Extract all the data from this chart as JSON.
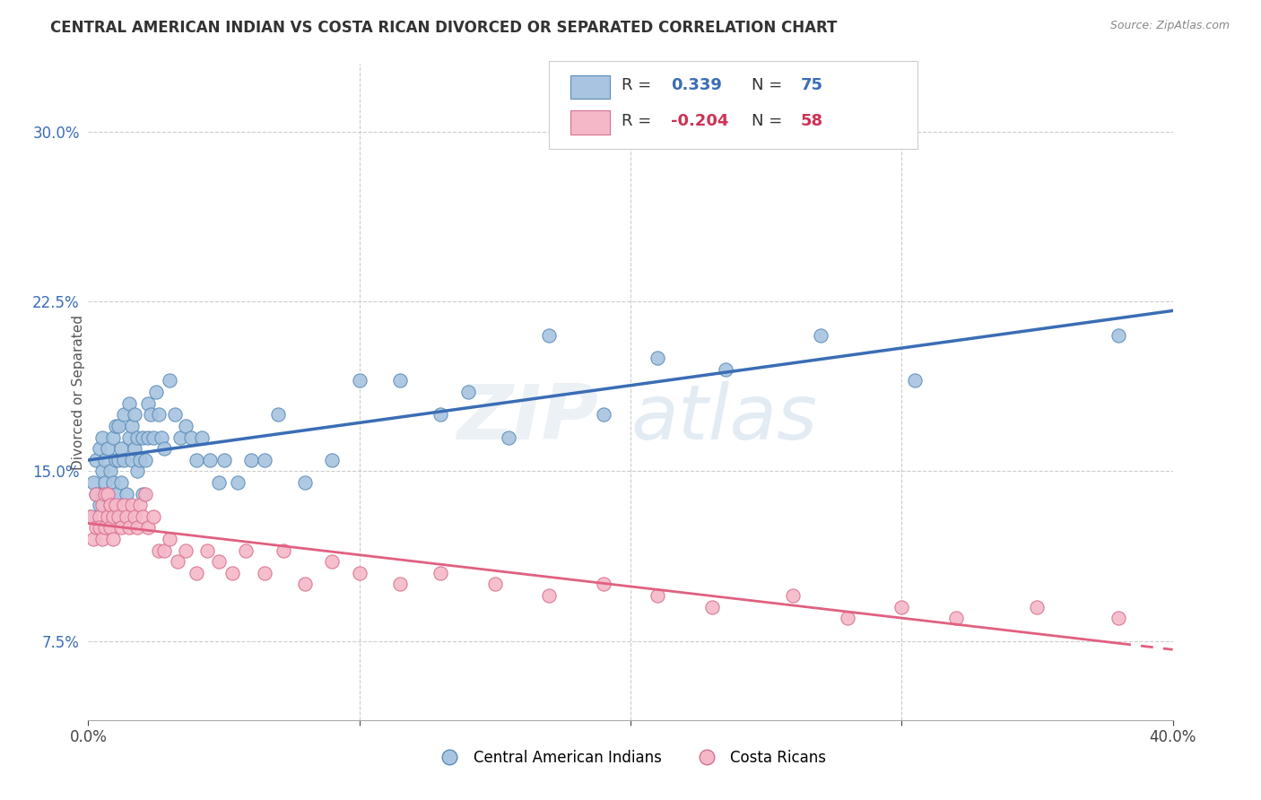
{
  "title": "CENTRAL AMERICAN INDIAN VS COSTA RICAN DIVORCED OR SEPARATED CORRELATION CHART",
  "source": "Source: ZipAtlas.com",
  "ylabel": "Divorced or Separated",
  "ytick_vals": [
    0.075,
    0.15,
    0.225,
    0.3
  ],
  "ytick_labels": [
    "7.5%",
    "15.0%",
    "22.5%",
    "30.0%"
  ],
  "xtick_vals": [
    0.0,
    0.1,
    0.2,
    0.3,
    0.4
  ],
  "xlim": [
    0.0,
    0.4
  ],
  "ylim": [
    0.04,
    0.33
  ],
  "legend_r_blue": "0.339",
  "legend_n_blue": "75",
  "legend_r_pink": "-0.204",
  "legend_n_pink": "58",
  "blue_color": "#A8C4E0",
  "blue_edge_color": "#5B8DB8",
  "pink_color": "#F5B8C8",
  "pink_edge_color": "#D87090",
  "blue_line_color": "#3A6DB5",
  "pink_line_color": "#E06080",
  "blue_scatter_x": [
    0.001,
    0.002,
    0.003,
    0.003,
    0.004,
    0.004,
    0.005,
    0.005,
    0.005,
    0.006,
    0.006,
    0.007,
    0.007,
    0.008,
    0.008,
    0.009,
    0.009,
    0.01,
    0.01,
    0.01,
    0.011,
    0.011,
    0.012,
    0.012,
    0.013,
    0.013,
    0.014,
    0.015,
    0.015,
    0.016,
    0.016,
    0.017,
    0.017,
    0.018,
    0.018,
    0.019,
    0.02,
    0.02,
    0.021,
    0.022,
    0.022,
    0.023,
    0.024,
    0.025,
    0.026,
    0.027,
    0.028,
    0.03,
    0.032,
    0.034,
    0.036,
    0.038,
    0.04,
    0.042,
    0.045,
    0.048,
    0.05,
    0.055,
    0.06,
    0.065,
    0.07,
    0.08,
    0.09,
    0.1,
    0.115,
    0.13,
    0.14,
    0.155,
    0.17,
    0.19,
    0.21,
    0.235,
    0.27,
    0.305,
    0.38
  ],
  "blue_scatter_y": [
    0.13,
    0.145,
    0.14,
    0.155,
    0.135,
    0.16,
    0.14,
    0.15,
    0.165,
    0.145,
    0.155,
    0.14,
    0.16,
    0.135,
    0.15,
    0.145,
    0.165,
    0.14,
    0.155,
    0.17,
    0.155,
    0.17,
    0.145,
    0.16,
    0.155,
    0.175,
    0.14,
    0.165,
    0.18,
    0.155,
    0.17,
    0.16,
    0.175,
    0.15,
    0.165,
    0.155,
    0.14,
    0.165,
    0.155,
    0.165,
    0.18,
    0.175,
    0.165,
    0.185,
    0.175,
    0.165,
    0.16,
    0.19,
    0.175,
    0.165,
    0.17,
    0.165,
    0.155,
    0.165,
    0.155,
    0.145,
    0.155,
    0.145,
    0.155,
    0.155,
    0.175,
    0.145,
    0.155,
    0.19,
    0.19,
    0.175,
    0.185,
    0.165,
    0.21,
    0.175,
    0.2,
    0.195,
    0.21,
    0.19,
    0.21
  ],
  "pink_scatter_x": [
    0.001,
    0.002,
    0.003,
    0.003,
    0.004,
    0.004,
    0.005,
    0.005,
    0.006,
    0.006,
    0.007,
    0.007,
    0.008,
    0.008,
    0.009,
    0.009,
    0.01,
    0.011,
    0.012,
    0.013,
    0.014,
    0.015,
    0.016,
    0.017,
    0.018,
    0.019,
    0.02,
    0.021,
    0.022,
    0.024,
    0.026,
    0.028,
    0.03,
    0.033,
    0.036,
    0.04,
    0.044,
    0.048,
    0.053,
    0.058,
    0.065,
    0.072,
    0.08,
    0.09,
    0.1,
    0.115,
    0.13,
    0.15,
    0.17,
    0.19,
    0.21,
    0.23,
    0.26,
    0.28,
    0.3,
    0.32,
    0.35,
    0.38
  ],
  "pink_scatter_y": [
    0.13,
    0.12,
    0.125,
    0.14,
    0.13,
    0.125,
    0.135,
    0.12,
    0.14,
    0.125,
    0.13,
    0.14,
    0.125,
    0.135,
    0.13,
    0.12,
    0.135,
    0.13,
    0.125,
    0.135,
    0.13,
    0.125,
    0.135,
    0.13,
    0.125,
    0.135,
    0.13,
    0.14,
    0.125,
    0.13,
    0.115,
    0.115,
    0.12,
    0.11,
    0.115,
    0.105,
    0.115,
    0.11,
    0.105,
    0.115,
    0.105,
    0.115,
    0.1,
    0.11,
    0.105,
    0.1,
    0.105,
    0.1,
    0.095,
    0.1,
    0.095,
    0.09,
    0.095,
    0.085,
    0.09,
    0.085,
    0.09,
    0.085
  ]
}
